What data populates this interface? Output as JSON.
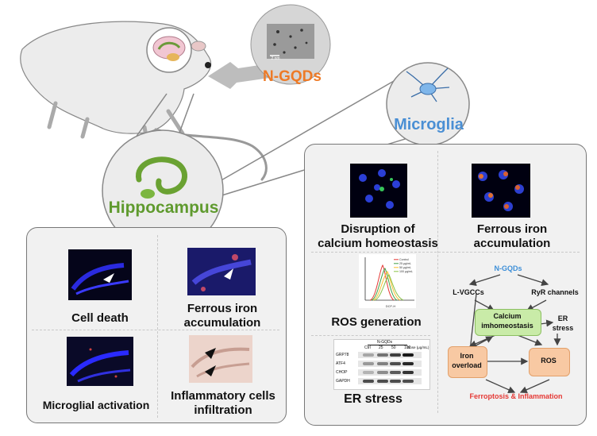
{
  "top": {
    "ngqds_label": "N-GQDs",
    "scale_label": "2 nm",
    "microglia_label": "Microglia",
    "hippocampus_label": "Hippocampus"
  },
  "left_panel": {
    "cell_death": "Cell death",
    "ferrous_iron_line1": "Ferrous iron",
    "ferrous_iron_line2": "accumulation",
    "microglial_activation": "Microglial activation",
    "inflammatory_line1": "Inflammatory cells",
    "inflammatory_line2": "infiltration"
  },
  "right_panel": {
    "disruption_line1": "Disruption of",
    "disruption_line2": "calcium homeostasis",
    "ferrous_iron_line1": "Ferrous iron",
    "ferrous_iron_line2": "accumulation",
    "ros_generation": "ROS generation",
    "er_stress": "ER stress",
    "flow_legend": [
      "Control",
      "25 μg/mL",
      "50 μg/mL",
      "100 μg/mL"
    ],
    "flow_legend_colors": [
      "#e53935",
      "#43a047",
      "#fbc02d",
      "#8bc34a"
    ],
    "flow_xlabel": "DCF-H",
    "western": {
      "group_label": "N-GQDs",
      "dose_label": "Dose (μg/mL)",
      "lanes": [
        "Ctrl",
        "25",
        "50",
        "100"
      ],
      "proteins": [
        "GRP78",
        "ATF4",
        "CHOP",
        "GAPDH"
      ]
    },
    "pathway": {
      "ngqds": "N-GQDs",
      "lvgcc": "L-VGCCs",
      "ryr": "RyR channels",
      "calcium_line1": "Calcium",
      "calcium_line2": "imhomeostasis",
      "er_line1": "ER",
      "er_line2": "stress",
      "iron_line1": "Iron",
      "iron_line2": "overload",
      "ros": "ROS",
      "outcome": "Ferroptosis & Inflammation"
    }
  },
  "colors": {
    "ngqds_orange": "#ee7a26",
    "microglia_blue": "#4a8fd4",
    "hippocampus_green": "#5f9a2e",
    "pathway_blue": "#3d8fd8",
    "outcome_red": "#e53935",
    "green_box": "#c9eba8",
    "orange_box": "#f8c9a3"
  }
}
